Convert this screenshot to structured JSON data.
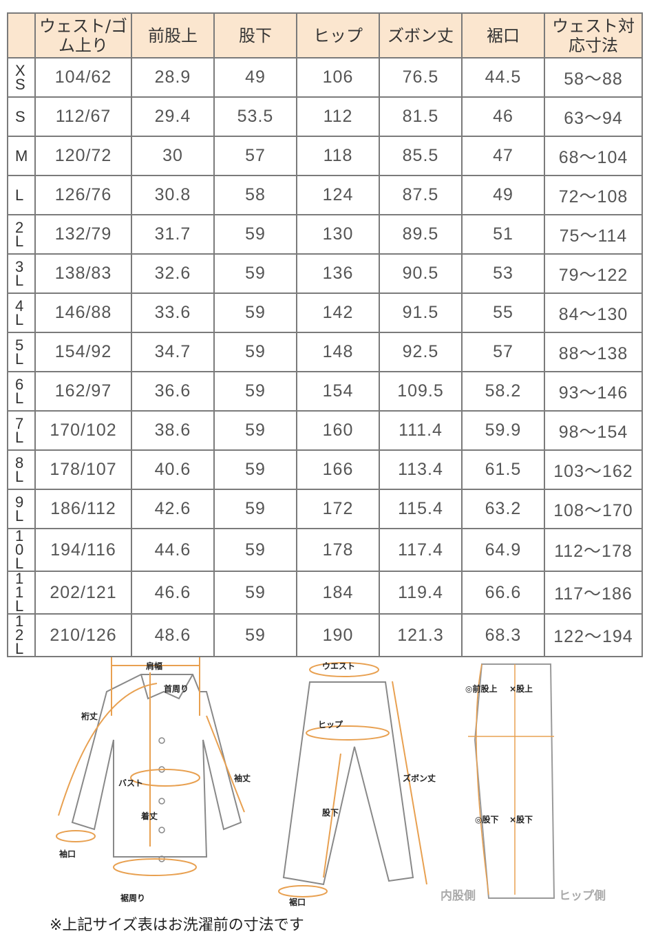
{
  "table": {
    "headers": [
      "",
      "ウェスト/ゴム上り",
      "前股上",
      "股下",
      "ヒップ",
      "ズボン丈",
      "裾口",
      "ウェスト対応寸法"
    ],
    "rows": [
      [
        "XS",
        "104/62",
        "28.9",
        "49",
        "106",
        "76.5",
        "44.5",
        "58～88"
      ],
      [
        "S",
        "112/67",
        "29.4",
        "53.5",
        "112",
        "81.5",
        "46",
        "63～94"
      ],
      [
        "M",
        "120/72",
        "30",
        "57",
        "118",
        "85.5",
        "47",
        "68～104"
      ],
      [
        "L",
        "126/76",
        "30.8",
        "58",
        "124",
        "87.5",
        "49",
        "72～108"
      ],
      [
        "2L",
        "132/79",
        "31.7",
        "59",
        "130",
        "89.5",
        "51",
        "75～114"
      ],
      [
        "3L",
        "138/83",
        "32.6",
        "59",
        "136",
        "90.5",
        "53",
        "79～122"
      ],
      [
        "4L",
        "146/88",
        "33.6",
        "59",
        "142",
        "91.5",
        "55",
        "84～130"
      ],
      [
        "5L",
        "154/92",
        "34.7",
        "59",
        "148",
        "92.5",
        "57",
        "88～138"
      ],
      [
        "6L",
        "162/97",
        "36.6",
        "59",
        "154",
        "109.5",
        "58.2",
        "93～146"
      ],
      [
        "7L",
        "170/102",
        "38.6",
        "59",
        "160",
        "111.4",
        "59.9",
        "98～154"
      ],
      [
        "8L",
        "178/107",
        "40.6",
        "59",
        "166",
        "113.4",
        "61.5",
        "103～162"
      ],
      [
        "9L",
        "186/112",
        "42.6",
        "59",
        "172",
        "115.4",
        "63.2",
        "108～170"
      ],
      [
        "10L",
        "194/116",
        "44.6",
        "59",
        "178",
        "117.4",
        "64.9",
        "112～178"
      ],
      [
        "11L",
        "202/121",
        "46.6",
        "59",
        "184",
        "119.4",
        "66.6",
        "117～186"
      ],
      [
        "12L",
        "210/126",
        "48.6",
        "59",
        "190",
        "121.3",
        "68.3",
        "122～194"
      ]
    ]
  },
  "diagram": {
    "shirt_labels": [
      "肩幅",
      "首周り",
      "裄丈",
      "バスト",
      "袖丈",
      "着丈",
      "袖口",
      "裾周り"
    ],
    "pants_labels": [
      "ウエスト",
      "ヒップ",
      "ズボン丈",
      "股下",
      "裾口"
    ],
    "side_labels": [
      "◎前股上",
      "×股上",
      "◎股下",
      "×股下",
      "内股側",
      "ヒップ側"
    ]
  },
  "note": "※上記サイズ表はお洗濯前の寸法です",
  "colors": {
    "header_bg": "#fbe6cf",
    "measure_line": "#e8a050",
    "border": "#7a7a7a"
  }
}
